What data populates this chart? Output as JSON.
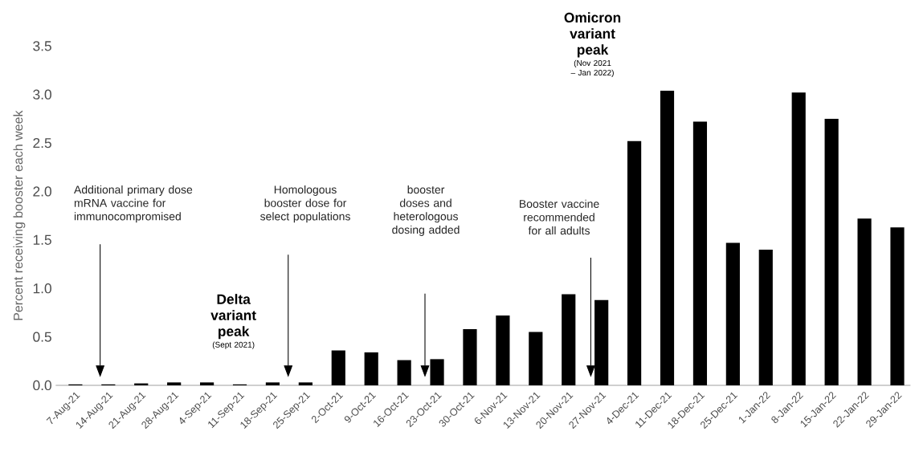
{
  "chart_data": {
    "type": "bar",
    "ylabel": "Percent receiving booster each week",
    "categories": [
      "7-Aug-21",
      "14-Aug-21",
      "21-Aug-21",
      "28-Aug-21",
      "4-Sep-21",
      "11-Sep-21",
      "18-Sep-21",
      "25-Sep-21",
      "2-Oct-21",
      "9-Oct-21",
      "16-Oct-21",
      "23-Oct-21",
      "30-Oct-21",
      "6-Nov-21",
      "13-Nov-21",
      "20-Nov-21",
      "27-Nov-21",
      "4-Dec-21",
      "11-Dec-21",
      "18-Dec-21",
      "25-Dec-21",
      "1-Jan-22",
      "8-Jan-22",
      "15-Jan-22",
      "22-Jan-22",
      "29-Jan-22"
    ],
    "values": [
      0.01,
      0.01,
      0.02,
      0.03,
      0.03,
      0.01,
      0.03,
      0.03,
      0.36,
      0.34,
      0.26,
      0.27,
      0.58,
      0.72,
      0.55,
      0.94,
      0.88,
      2.52,
      3.04,
      2.72,
      1.47,
      1.4,
      3.02,
      2.75,
      1.72,
      1.63
    ],
    "color": "#000000",
    "ylim": [
      0,
      3.5
    ],
    "yticks": [
      {
        "value": 0,
        "label": "0.0"
      },
      {
        "value": 0.5,
        "label": "0.5"
      },
      {
        "value": 1,
        "label": "1.0"
      },
      {
        "value": 1.5,
        "label": "1.5"
      },
      {
        "value": 2,
        "label": "2.0"
      },
      {
        "value": 2.5,
        "label": "2.5"
      },
      {
        "value": 3,
        "label": "3.0"
      },
      {
        "value": 3.5,
        "label": "3.5"
      }
    ],
    "annotations": [
      "Additional primary dose mRNA vaccine for immunocompromised",
      "Homologous booster dose for select populations",
      "booster doses and heterologous dosing added",
      "Booster vaccine recommended for all adults",
      "Delta variant peak",
      "(Sept 2021)",
      "Omicron variant peak",
      "(Nov 2021 – Jan 2022)"
    ]
  }
}
